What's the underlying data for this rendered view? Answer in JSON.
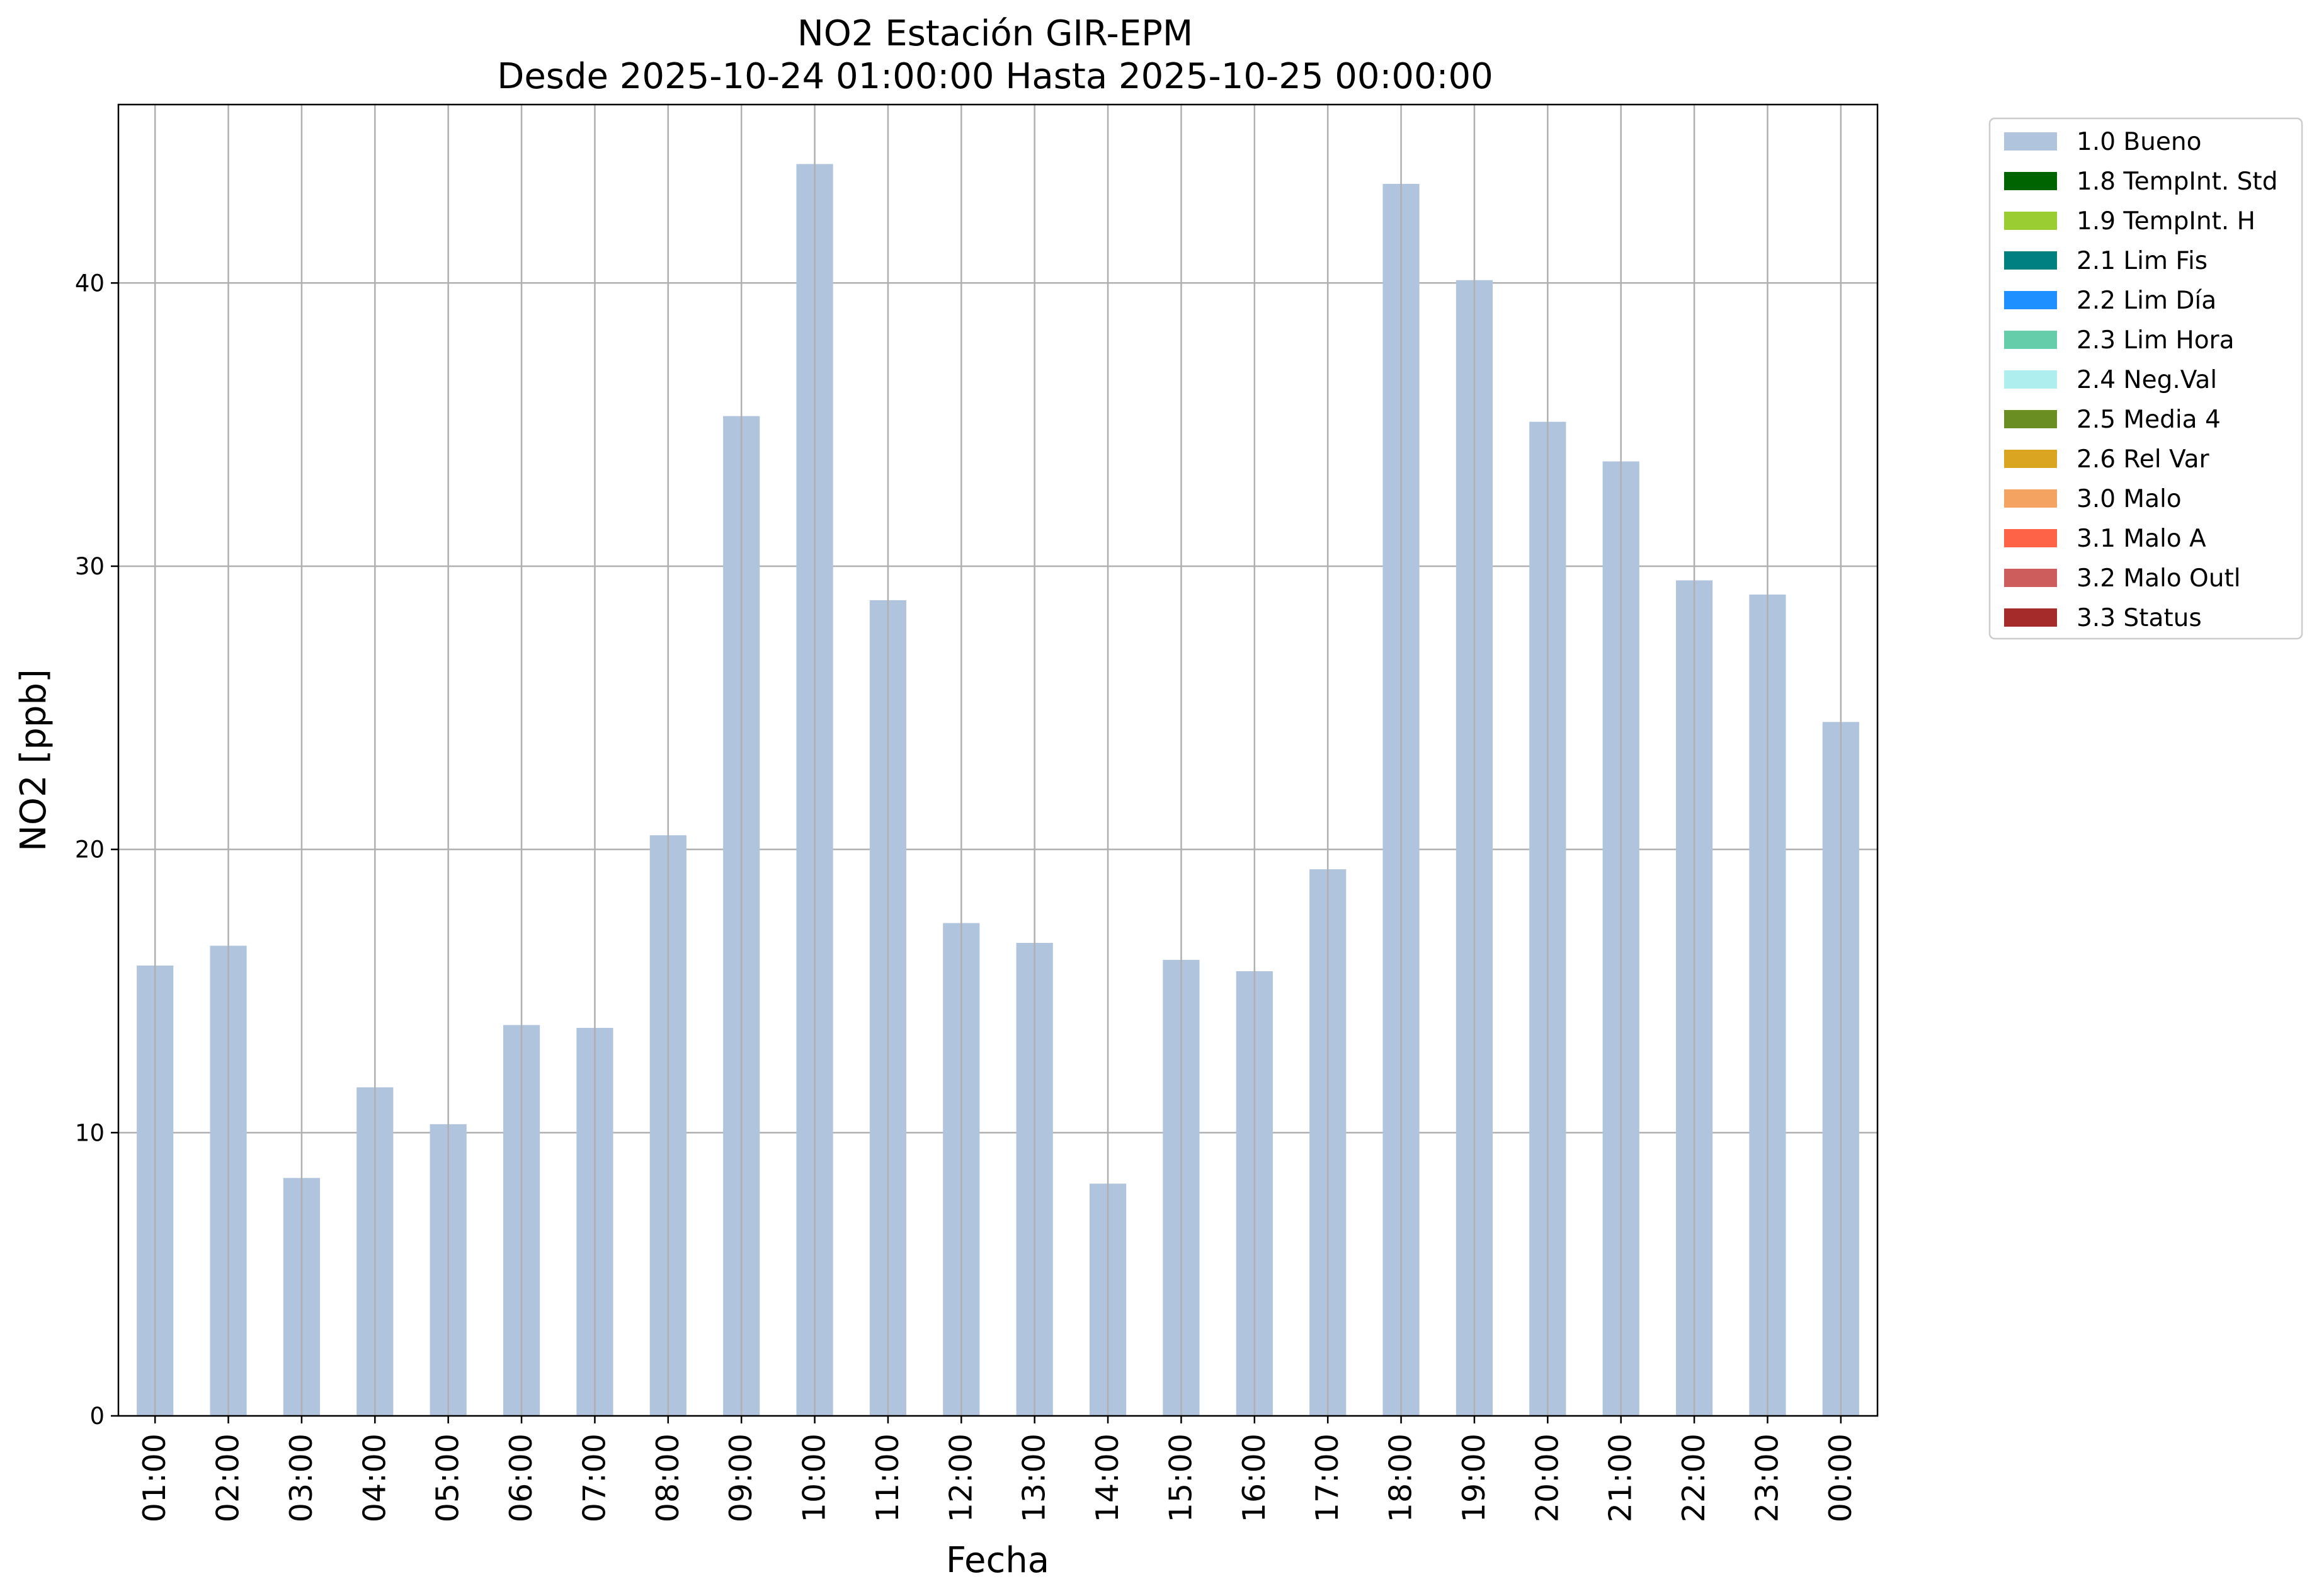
{
  "chart_data": {
    "type": "bar",
    "title": "NO2 Estación GIR-EPM",
    "subtitle": "Desde 2025-10-24 01:00:00 Hasta 2025-10-25 00:00:00",
    "xlabel": "Fecha",
    "ylabel": "NO2 [ppb]",
    "ylim": [
      0,
      46.3
    ],
    "yticks": [
      0,
      10,
      20,
      30,
      40
    ],
    "grid": true,
    "legend_position": "outside-top-right",
    "categories": [
      "01:00",
      "02:00",
      "03:00",
      "04:00",
      "05:00",
      "06:00",
      "07:00",
      "08:00",
      "09:00",
      "10:00",
      "11:00",
      "12:00",
      "13:00",
      "14:00",
      "15:00",
      "16:00",
      "17:00",
      "18:00",
      "19:00",
      "20:00",
      "21:00",
      "22:00",
      "23:00",
      "00:00"
    ],
    "series": [
      {
        "name": "1.0 Bueno",
        "color": "#b0c4de",
        "values": [
          15.9,
          16.6,
          8.4,
          11.6,
          10.3,
          13.8,
          13.7,
          20.5,
          35.3,
          44.2,
          28.8,
          17.4,
          16.7,
          8.2,
          16.1,
          15.7,
          19.3,
          43.5,
          40.1,
          35.1,
          33.7,
          29.5,
          29.0,
          24.5
        ]
      }
    ],
    "legend": [
      {
        "label": "1.0 Bueno",
        "color": "#b0c4de"
      },
      {
        "label": "1.8 TempInt. Std",
        "color": "#006400"
      },
      {
        "label": "1.9 TempInt. H",
        "color": "#9acd32"
      },
      {
        "label": "2.1 Lim Fis",
        "color": "#008080"
      },
      {
        "label": "2.2 Lim Día",
        "color": "#1e90ff"
      },
      {
        "label": "2.3 Lim Hora",
        "color": "#66cdaa"
      },
      {
        "label": "2.4 Neg.Val",
        "color": "#afeeee"
      },
      {
        "label": "2.5 Media 4",
        "color": "#6b8e23"
      },
      {
        "label": "2.6 Rel Var",
        "color": "#daa520"
      },
      {
        "label": "3.0 Malo",
        "color": "#f4a460"
      },
      {
        "label": "3.1 Malo A",
        "color": "#ff6347"
      },
      {
        "label": "3.2 Malo Outl",
        "color": "#cd5c5c"
      },
      {
        "label": "3.3 Status",
        "color": "#a52a2a"
      }
    ]
  }
}
